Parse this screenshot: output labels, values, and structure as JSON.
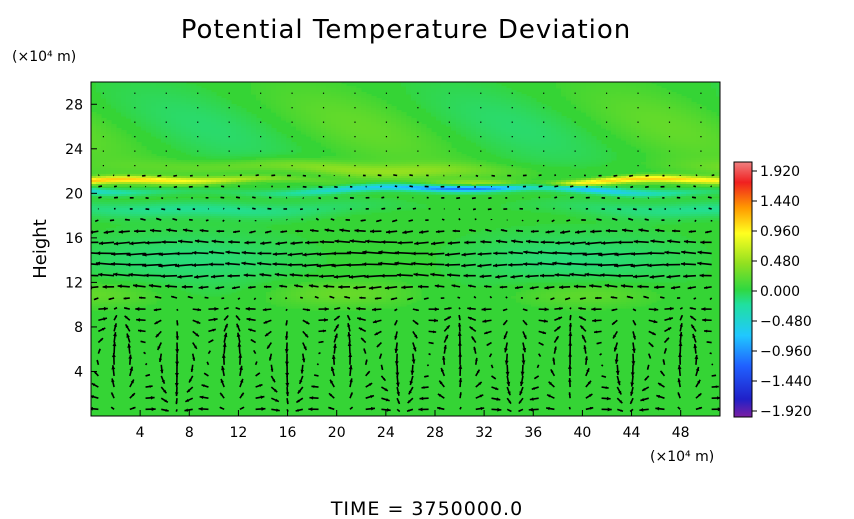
{
  "chart_data": {
    "type": "heatmap",
    "title": "Potential Temperature Deviation",
    "xlabel": "",
    "ylabel": "Height",
    "x_unit_label": "(×10⁴ m)",
    "y_unit_label": "(×10⁴ m)",
    "x_ticks": [
      4,
      8,
      12,
      16,
      20,
      24,
      28,
      32,
      36,
      40,
      44,
      48
    ],
    "y_ticks": [
      4,
      8,
      12,
      16,
      20,
      24,
      28
    ],
    "xlim": [
      0,
      51.2
    ],
    "ylim": [
      0,
      30
    ],
    "colorbar": {
      "ticks": [
        "1.920",
        "1.440",
        "0.960",
        "0.480",
        "0.000",
        "−0.480",
        "−0.960",
        "−1.440",
        "−1.920"
      ],
      "values": [
        1.92,
        1.44,
        0.96,
        0.48,
        0.0,
        -0.48,
        -0.96,
        -1.44,
        -1.92
      ],
      "range": [
        -1.92,
        1.92
      ]
    },
    "background_value": 0.0,
    "bands": [
      {
        "y": 21.0,
        "amplitude": 1.0
      },
      {
        "y": 20.3,
        "amplitude": -1.2
      },
      {
        "y": 22.2,
        "amplitude": 0.35
      },
      {
        "y": 18.7,
        "amplitude": -0.3
      }
    ],
    "overlay": "wind vectors",
    "grid": false
  },
  "footer": {
    "time_label": "TIME  =  3750000.0"
  },
  "colors": {
    "background": "#ffffff",
    "field_base": "#35d435",
    "arrow": "#000000"
  }
}
